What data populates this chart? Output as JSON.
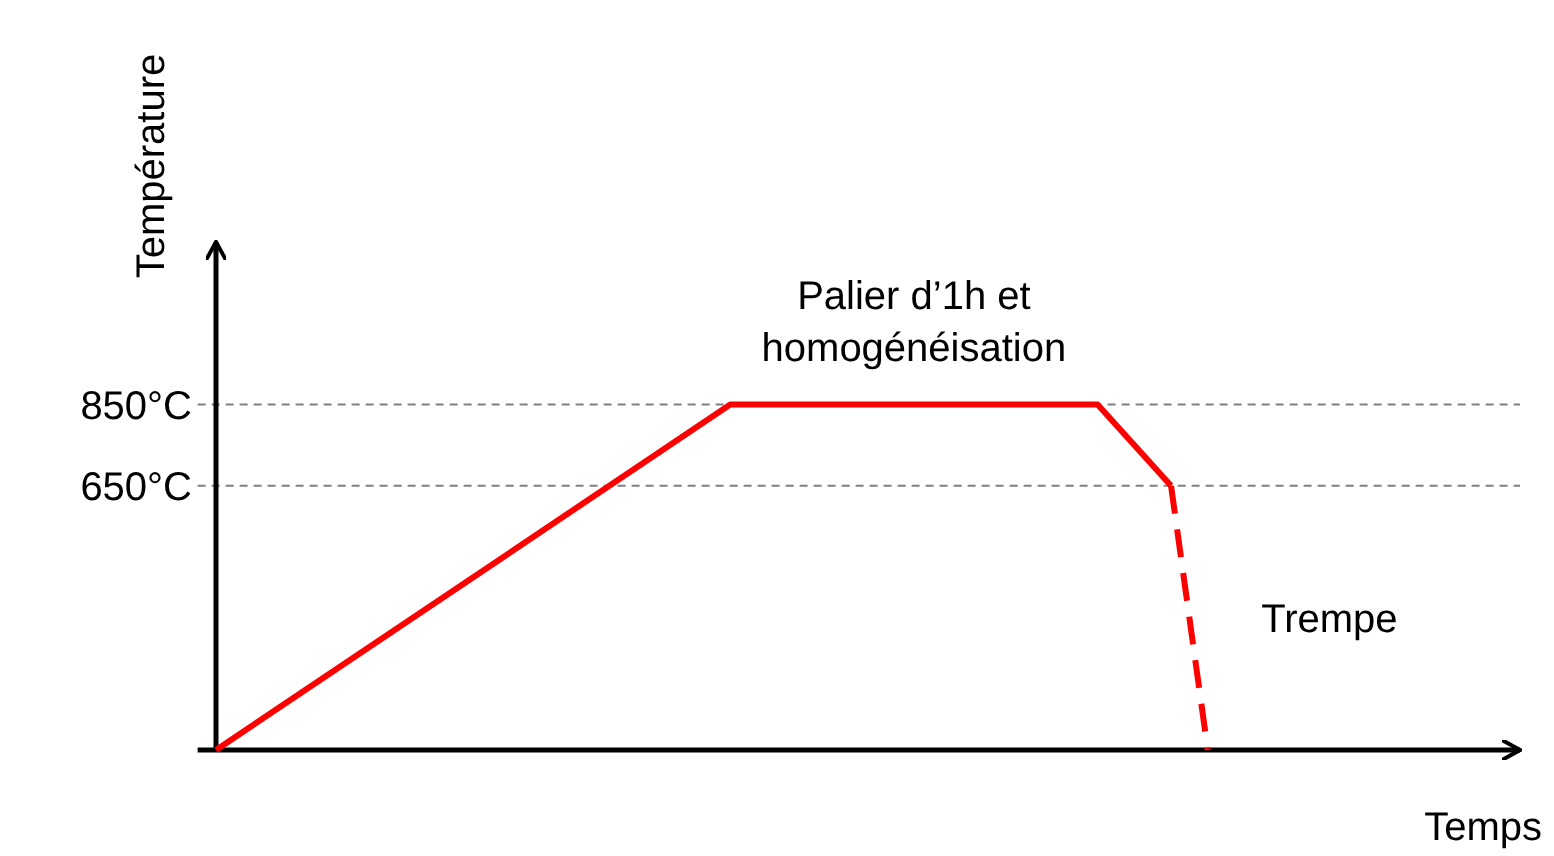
{
  "chart_data": {
    "type": "line",
    "xlabel": "Temps",
    "ylabel": "Température",
    "categories": [
      null,
      null,
      null,
      null,
      null,
      null,
      null,
      null,
      null,
      null,
      null,
      null,
      null,
      null,
      null,
      null,
      null,
      null,
      null,
      null,
      null,
      null,
      null,
      null,
      null,
      null,
      null,
      null,
      null,
      null,
      null,
      null,
      null,
      null,
      null,
      null
    ],
    "ylim": [
      0,
      1250
    ],
    "yticks": [
      {
        "value": 650,
        "label": "650°C"
      },
      {
        "value": 850,
        "label": "850°C"
      }
    ],
    "series": [
      {
        "color": "#ff0000",
        "values": [
          0,
          null,
          null,
          null,
          null,
          null,
          null,
          null,
          null,
          null,
          null,
          null,
          null,
          null,
          850,
          null,
          null,
          null,
          null,
          null,
          null,
          null,
          null,
          null,
          850,
          null,
          650,
          null,
          null,
          null,
          null,
          null,
          null,
          null,
          null,
          null
        ],
        "line_style": "solid"
      },
      {
        "color": "#ff0000",
        "values": [
          null,
          null,
          null,
          null,
          null,
          null,
          null,
          null,
          null,
          null,
          null,
          null,
          null,
          null,
          null,
          null,
          null,
          null,
          null,
          null,
          null,
          null,
          null,
          null,
          null,
          null,
          650,
          0,
          null,
          null,
          null,
          null,
          null,
          null,
          null,
          null
        ],
        "line_style": "dashed"
      }
    ],
    "ref_lines": [
      {
        "axis": "y",
        "value": 850,
        "color": "#808080",
        "line_style": "dashed"
      },
      {
        "axis": "y",
        "value": 650,
        "color": "#808080",
        "line_style": "dashed"
      }
    ],
    "annotations": [
      "Palier d’1h et\nhomogénéisation",
      "Trempe"
    ]
  }
}
